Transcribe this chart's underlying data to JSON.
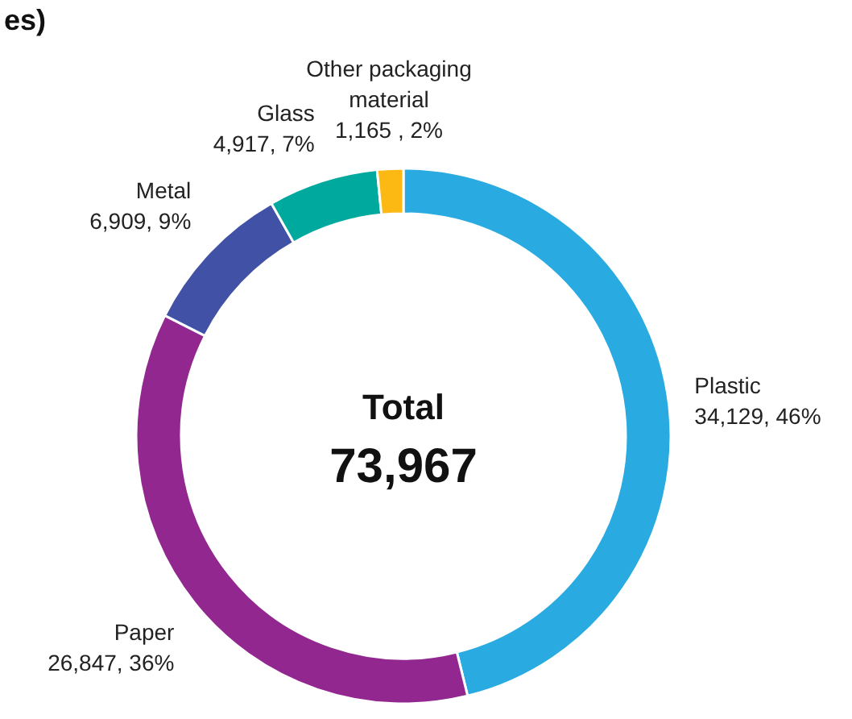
{
  "chart_data": {
    "type": "donut",
    "title": "es)",
    "categories": [
      "Plastic",
      "Paper",
      "Metal",
      "Glass",
      "Other packaging material"
    ],
    "values": [
      34129,
      26847,
      6909,
      4917,
      1165
    ],
    "colors": [
      "#29abe2",
      "#92278f",
      "#4152a6",
      "#00a99d",
      "#fdb913"
    ],
    "value_labels": [
      "34,129, 46%",
      "26,847, 36%",
      "6,909, 9%",
      "4,917, 7%",
      "1,165 , 2%"
    ],
    "annotations": [
      "Total",
      "73,967"
    ]
  }
}
